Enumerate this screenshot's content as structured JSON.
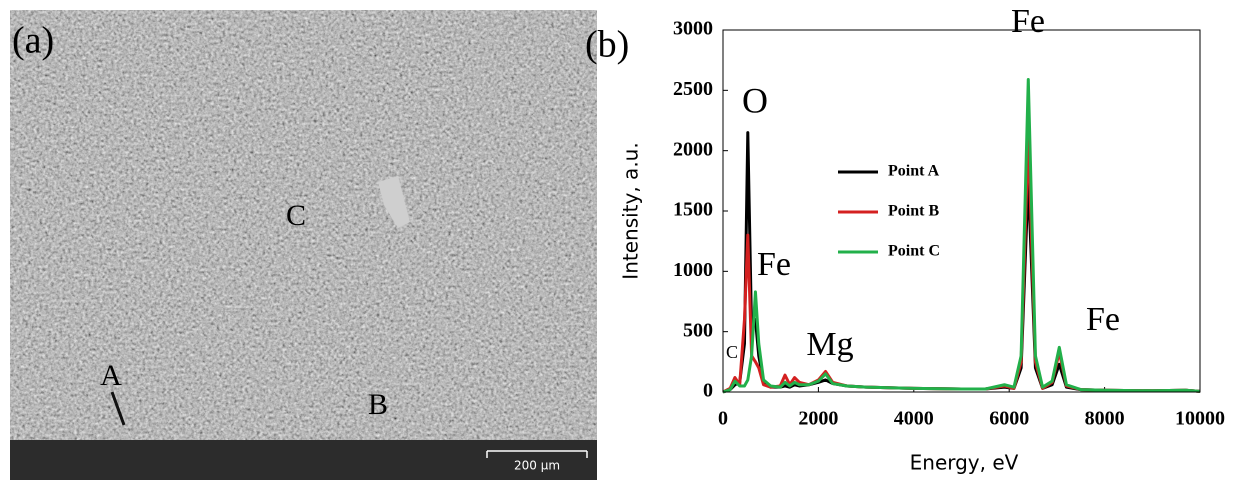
{
  "panel_a": {
    "label": "(a)",
    "points": [
      "A",
      "B",
      "C"
    ],
    "scale_bar": "200 µm"
  },
  "chart_data": {
    "type": "line",
    "label": "(b)",
    "xlabel": "Energy, eV",
    "ylabel": "Intensity, a.u.",
    "xlim": [
      0,
      10000
    ],
    "ylim": [
      0,
      3000
    ],
    "xticks": [
      0,
      2000,
      4000,
      6000,
      8000,
      10000
    ],
    "yticks": [
      0,
      500,
      1000,
      1500,
      2000,
      2500,
      3000
    ],
    "annotations": [
      "C",
      "O",
      "Fe",
      "Mg",
      "Fe",
      "Fe"
    ],
    "legend": "center",
    "x": [
      0,
      150,
      250,
      350,
      450,
      520,
      600,
      680,
      750,
      850,
      1000,
      1200,
      1300,
      1400,
      1500,
      1600,
      1800,
      2000,
      2150,
      2300,
      2600,
      3000,
      4000,
      5000,
      5500,
      5900,
      6100,
      6250,
      6400,
      6550,
      6700,
      6900,
      7050,
      7200,
      7500,
      8000,
      9000,
      9700,
      10000
    ],
    "series": [
      {
        "name": "Point A",
        "color": "#000000",
        "values": [
          0,
          20,
          60,
          80,
          400,
          2150,
          500,
          600,
          300,
          80,
          40,
          40,
          50,
          40,
          60,
          50,
          60,
          80,
          100,
          70,
          50,
          40,
          30,
          25,
          25,
          40,
          30,
          200,
          1760,
          200,
          30,
          60,
          230,
          40,
          20,
          15,
          10,
          15,
          5
        ]
      },
      {
        "name": "Point B",
        "color": "#d42020",
        "values": [
          0,
          30,
          120,
          60,
          600,
          1300,
          300,
          250,
          200,
          60,
          40,
          50,
          140,
          60,
          120,
          80,
          60,
          100,
          170,
          80,
          50,
          40,
          30,
          25,
          25,
          50,
          30,
          250,
          2130,
          250,
          30,
          80,
          330,
          50,
          20,
          15,
          10,
          15,
          5
        ]
      },
      {
        "name": "Point C",
        "color": "#22b04a",
        "values": [
          0,
          20,
          90,
          50,
          50,
          100,
          300,
          830,
          400,
          100,
          50,
          40,
          80,
          50,
          80,
          60,
          60,
          90,
          150,
          70,
          50,
          40,
          30,
          25,
          25,
          60,
          40,
          300,
          2590,
          300,
          40,
          90,
          370,
          60,
          20,
          15,
          10,
          15,
          5
        ]
      }
    ]
  }
}
